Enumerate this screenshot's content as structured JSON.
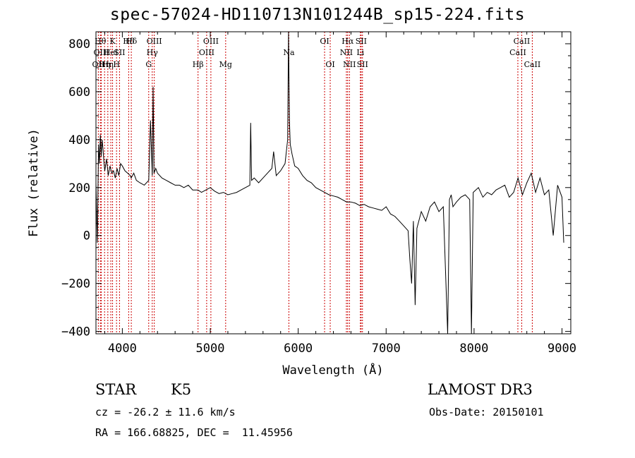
{
  "chart_data": {
    "type": "line",
    "title": "spec-57024-HD110713N101244B_sp15-224.fits",
    "xlabel": "Wavelength (Å)",
    "ylabel": "Flux (relative)",
    "xlim": [
      3700,
      9100
    ],
    "ylim": [
      -410,
      850
    ],
    "x_ticks": [
      4000,
      5000,
      6000,
      7000,
      8000,
      9000
    ],
    "y_ticks": [
      -400,
      -200,
      0,
      200,
      400,
      600,
      800
    ],
    "series": [
      {
        "name": "spectrum",
        "x": [
          3700,
          3715,
          3730,
          3740,
          3750,
          3760,
          3770,
          3780,
          3790,
          3800,
          3820,
          3840,
          3860,
          3880,
          3900,
          3920,
          3940,
          3960,
          3980,
          4000,
          4030,
          4060,
          4090,
          4100,
          4130,
          4160,
          4200,
          4250,
          4300,
          4320,
          4340,
          4350,
          4360,
          4380,
          4400,
          4450,
          4500,
          4550,
          4600,
          4650,
          4700,
          4750,
          4800,
          4860,
          4900,
          4950,
          5000,
          5050,
          5100,
          5150,
          5200,
          5250,
          5300,
          5350,
          5400,
          5450,
          5460,
          5470,
          5500,
          5550,
          5600,
          5650,
          5700,
          5720,
          5750,
          5800,
          5850,
          5880,
          5890,
          5900,
          5910,
          5930,
          5960,
          6000,
          6050,
          6100,
          6150,
          6200,
          6250,
          6300,
          6350,
          6400,
          6450,
          6500,
          6550,
          6600,
          6650,
          6700,
          6750,
          6800,
          6850,
          6900,
          6950,
          7000,
          7050,
          7100,
          7150,
          7200,
          7250,
          7270,
          7290,
          7310,
          7330,
          7350,
          7400,
          7450,
          7500,
          7550,
          7600,
          7650,
          7700,
          7720,
          7740,
          7760,
          7800,
          7850,
          7900,
          7950,
          7970,
          7990,
          8050,
          8100,
          8150,
          8200,
          8250,
          8300,
          8350,
          8400,
          8450,
          8500,
          8550,
          8600,
          8650,
          8700,
          8750,
          8800,
          8850,
          8900,
          8950,
          9000,
          9020
        ],
        "y": [
          220,
          -30,
          380,
          300,
          420,
          330,
          400,
          360,
          310,
          270,
          320,
          250,
          290,
          260,
          270,
          240,
          280,
          250,
          300,
          290,
          270,
          260,
          250,
          240,
          260,
          230,
          220,
          210,
          230,
          480,
          250,
          620,
          260,
          280,
          260,
          240,
          230,
          220,
          210,
          210,
          200,
          210,
          190,
          190,
          180,
          190,
          200,
          185,
          175,
          180,
          170,
          175,
          180,
          190,
          200,
          210,
          470,
          230,
          240,
          220,
          240,
          260,
          280,
          350,
          250,
          270,
          300,
          400,
          850,
          480,
          380,
          340,
          290,
          280,
          250,
          230,
          220,
          200,
          190,
          180,
          170,
          165,
          160,
          150,
          140,
          140,
          135,
          125,
          130,
          120,
          115,
          110,
          105,
          120,
          90,
          80,
          60,
          40,
          20,
          -100,
          -200,
          60,
          -290,
          30,
          100,
          60,
          120,
          140,
          100,
          120,
          -410,
          150,
          170,
          120,
          140,
          160,
          170,
          150,
          -410,
          180,
          200,
          160,
          180,
          170,
          190,
          200,
          210,
          160,
          180,
          240,
          170,
          220,
          260,
          180,
          240,
          170,
          190,
          0,
          210,
          160,
          -30
        ]
      }
    ],
    "line_markers": [
      {
        "wl": 3727,
        "label": "OII",
        "row": 3
      },
      {
        "wl": 3750,
        "label": "Hθ",
        "row": 1
      },
      {
        "wl": 3760,
        "label": "OIII",
        "row": 2
      },
      {
        "wl": 3798,
        "label": "Hη",
        "row": 3
      },
      {
        "wl": 3835,
        "label": "Hη",
        "row": 3
      },
      {
        "wl": 3869,
        "label": "HeI",
        "row": 2
      },
      {
        "wl": 3889,
        "label": "K",
        "row": 1
      },
      {
        "wl": 3934,
        "label": "H",
        "row": 3
      },
      {
        "wl": 3968,
        "label": "SII",
        "row": 2
      },
      {
        "wl": 4072,
        "label": "Hδ",
        "row": 1
      },
      {
        "wl": 4102,
        "label": "Hδ",
        "row": 1
      },
      {
        "wl": 4300,
        "label": "G",
        "row": 3
      },
      {
        "wl": 4340,
        "label": "Hγ",
        "row": 2
      },
      {
        "wl": 4363,
        "label": "OIII",
        "row": 1
      },
      {
        "wl": 4861,
        "label": "Hβ",
        "row": 3
      },
      {
        "wl": 4959,
        "label": "OIII",
        "row": 2
      },
      {
        "wl": 5007,
        "label": "OIII",
        "row": 1
      },
      {
        "wl": 5175,
        "label": "Mg",
        "row": 3
      },
      {
        "wl": 5894,
        "label": "Na",
        "row": 2
      },
      {
        "wl": 6300,
        "label": "OI",
        "row": 1
      },
      {
        "wl": 6364,
        "label": "OI",
        "row": 3
      },
      {
        "wl": 6548,
        "label": "NII",
        "row": 2
      },
      {
        "wl": 6563,
        "label": "Hα",
        "row": 1
      },
      {
        "wl": 6583,
        "label": "NII",
        "row": 3
      },
      {
        "wl": 6707,
        "label": "Li",
        "row": 2
      },
      {
        "wl": 6716,
        "label": "SII",
        "row": 1
      },
      {
        "wl": 6731,
        "label": "SII",
        "row": 3
      },
      {
        "wl": 8498,
        "label": "CaII",
        "row": 2
      },
      {
        "wl": 8542,
        "label": "CaII",
        "row": 1
      },
      {
        "wl": 8662,
        "label": "CaII",
        "row": 3
      }
    ],
    "line_color": "#000000",
    "marker_color": "#cc0000"
  },
  "info": {
    "obj_class": "STAR",
    "subclass": "K5",
    "survey": "LAMOST DR3",
    "cz": "cz = -26.2 ± 11.6 km/s",
    "obs_date": "Obs-Date: 20150101",
    "coords": "RA = 166.68825, DEC =  11.45956"
  }
}
